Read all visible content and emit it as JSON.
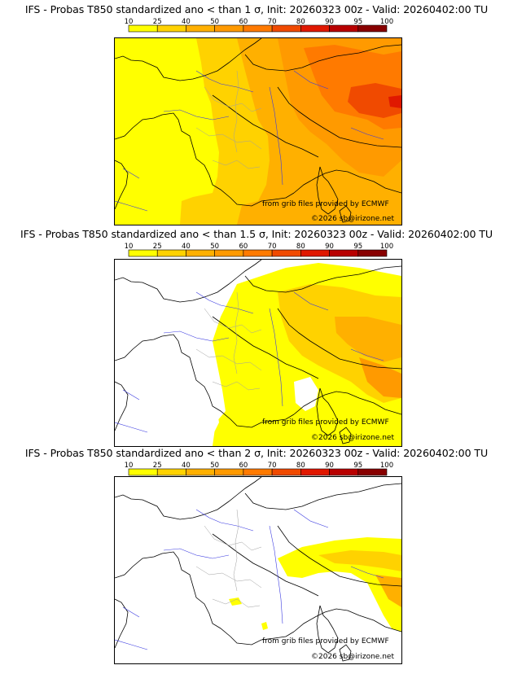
{
  "panels": [
    {
      "title": "IFS - Probas T850  standardized ano < than 1 σ, Init: 20260323 00z - Valid: 20260402:00 TU",
      "credit": "from grib files provided by ECMWF",
      "footer": "©2026 sb@irizone.net"
    },
    {
      "title": "IFS - Probas T850  standardized ano < than 1.5 σ, Init: 20260323 00z - Valid: 20260402:00 TU",
      "credit": "from grib files provided by ECMWF",
      "footer": "©2026 sb@irizone.net"
    },
    {
      "title": "IFS - Probas T850  standardized ano < than 2 σ, Init: 20260323 00z - Valid: 20260402:00 TU",
      "credit": "from grib files provided by ECMWF",
      "footer": "©2026 sb@irizone.net"
    }
  ],
  "legend": {
    "ticks": [
      "10",
      "25",
      "40",
      "50",
      "60",
      "70",
      "80",
      "90",
      "95",
      "100"
    ],
    "colors": [
      "#ffff00",
      "#ffd200",
      "#ffb000",
      "#ff9a00",
      "#ff7a00",
      "#f04a00",
      "#e01800",
      "#b80000",
      "#880000",
      "#5a0000"
    ]
  },
  "colors": {
    "coast": "#000000",
    "rivers": "#3a3ae0",
    "borders": "#a0a0a0"
  }
}
